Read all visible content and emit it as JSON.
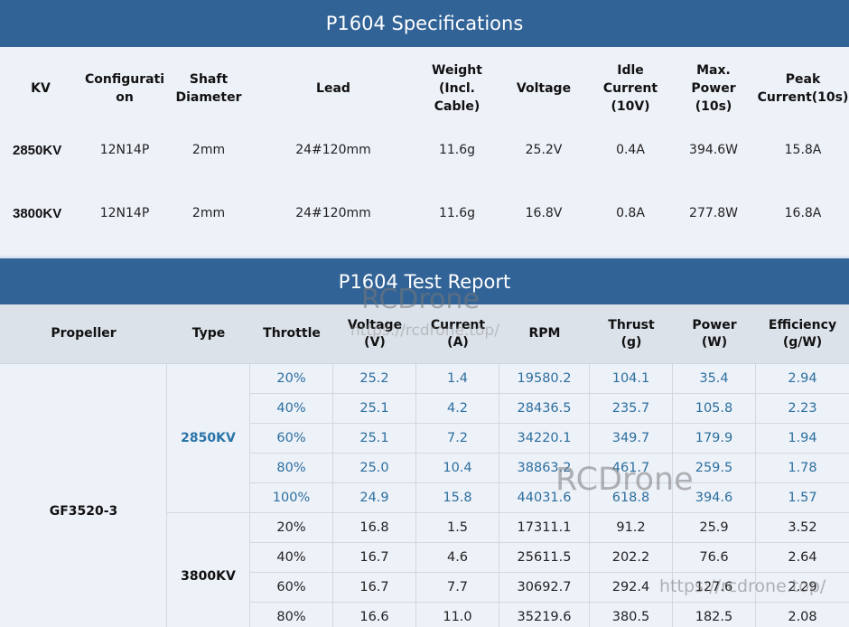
{
  "spec": {
    "title": "P1604 Specifications",
    "headers": {
      "kv": "KV",
      "configuration": "Configurati on",
      "shaft": "Shaft Diameter",
      "lead": "Lead",
      "weight": "Weight (Incl. Cable)",
      "voltage": "Voltage",
      "idle": "Idle Current (10V)",
      "max_power": "Max. Power (10s)",
      "peak": "Peak Current(10s)"
    },
    "rows": [
      {
        "kv": "2850KV",
        "configuration": "12N14P",
        "shaft": "2mm",
        "lead": "24#120mm",
        "weight": "11.6g",
        "voltage": "25.2V",
        "idle": "0.4A",
        "max_power": "394.6W",
        "peak": "15.8A"
      },
      {
        "kv": "3800KV",
        "configuration": "12N14P",
        "shaft": "2mm",
        "lead": "24#120mm",
        "weight": "11.6g",
        "voltage": "16.8V",
        "idle": "0.8A",
        "max_power": "277.8W",
        "peak": "16.8A"
      }
    ]
  },
  "test": {
    "title": "P1604 Test Report",
    "headers": {
      "propeller": "Propeller",
      "type": "Type",
      "throttle": "Throttle",
      "voltage": "Voltage (V)",
      "current": "Current (A)",
      "rpm": "RPM",
      "thrust": "Thrust (g)",
      "power": "Power (W)",
      "efficiency": "Efficiency (g/W)"
    },
    "propeller": "GF3520-3",
    "groups": [
      {
        "type": "2850KV",
        "rows": [
          [
            "20%",
            "25.2",
            "1.4",
            "19580.2",
            "104.1",
            "35.4",
            "2.94"
          ],
          [
            "40%",
            "25.1",
            "4.2",
            "28436.5",
            "235.7",
            "105.8",
            "2.23"
          ],
          [
            "60%",
            "25.1",
            "7.2",
            "34220.1",
            "349.7",
            "179.9",
            "1.94"
          ],
          [
            "80%",
            "25.0",
            "10.4",
            "38863.2",
            "461.7",
            "259.5",
            "1.78"
          ],
          [
            "100%",
            "24.9",
            "15.8",
            "44031.6",
            "618.8",
            "394.6",
            "1.57"
          ]
        ]
      },
      {
        "type": "3800KV",
        "rows": [
          [
            "20%",
            "16.8",
            "1.5",
            "17311.1",
            "91.2",
            "25.9",
            "3.52"
          ],
          [
            "40%",
            "16.7",
            "4.6",
            "25611.5",
            "202.2",
            "76.6",
            "2.64"
          ],
          [
            "60%",
            "16.7",
            "7.7",
            "30692.7",
            "292.4",
            "127.6",
            "2.29"
          ],
          [
            "80%",
            "16.6",
            "11.0",
            "35219.6",
            "380.5",
            "182.5",
            "2.08"
          ]
        ]
      }
    ]
  },
  "watermarks": {
    "brand": "RCDrone",
    "url_small": "https://rcdrone.top/",
    "brand_mid": "RCDrone",
    "url_bottom": "https://rcdrone.top/"
  },
  "colors": {
    "banner": "#326396",
    "background": "#edf1f8",
    "header_row": "#dce2ea",
    "accent_text": "#2d6f9e"
  }
}
